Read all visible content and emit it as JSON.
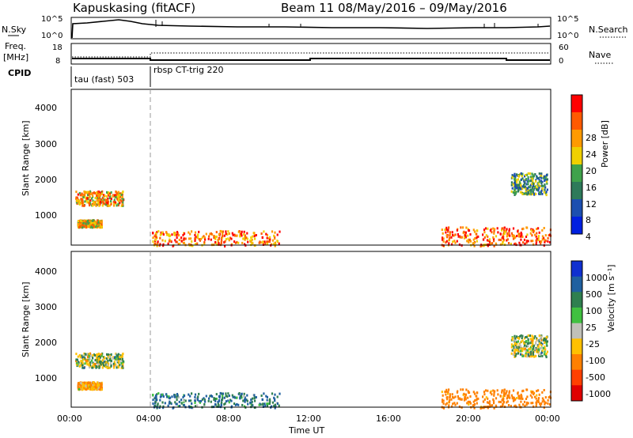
{
  "header": {
    "station": "Kapuskasing (fitACF)",
    "beam_range": "Beam 11 08/May/2016 – 09/May/2016"
  },
  "sky_panel": {
    "left_label": "N.Sky",
    "left_ticks": [
      "10^5",
      "10^0"
    ],
    "right_ticks": [
      "10^5",
      "10^0"
    ],
    "right_label": "N.Search"
  },
  "freq_panel": {
    "left_label_1": "Freq.",
    "left_label_2": "[MHz]",
    "left_ticks": [
      "18",
      "8"
    ],
    "right_ticks": [
      "60",
      "0"
    ],
    "right_label": "Nave"
  },
  "cpid": {
    "label": "CPID",
    "segments": [
      "tau (fast) 503",
      "rbsp CT-trig 220"
    ]
  },
  "power_panel": {
    "ylabel": "Slant Range [km]",
    "yticks": [
      "4000",
      "3000",
      "2000",
      "1000"
    ],
    "colorbar_label": "Power [dB]",
    "colorbar_ticks": [
      "28",
      "24",
      "20",
      "16",
      "12",
      "8",
      "4"
    ],
    "colors": [
      "#0020e0",
      "#1c4fb0",
      "#2e7a5a",
      "#3fa24b",
      "#f0d000",
      "#ff9a00",
      "#ff5a00",
      "#ff0000"
    ]
  },
  "velocity_panel": {
    "ylabel": "Slant Range [km]",
    "yticks": [
      "4000",
      "3000",
      "2000",
      "1000"
    ],
    "colorbar_label": "Velocity [m s⁻¹]",
    "colorbar_ticks": [
      "1000",
      "500",
      "100",
      "25",
      "-25",
      "-100",
      "-500",
      "-1000"
    ],
    "colors": [
      "#1030d0",
      "#2060a0",
      "#2f7f4f",
      "#40c040",
      "#c0c0b8",
      "#ffc000",
      "#ff8000",
      "#ff4000",
      "#e00000"
    ]
  },
  "xaxis": {
    "ticks": [
      "00:00",
      "04:00",
      "08:00",
      "12:00",
      "16:00",
      "20:00",
      "00:00"
    ],
    "label": "Time UT"
  },
  "chart_data": {
    "type": "heatmap",
    "title": "Kapuskasing (fitACF)",
    "subtitle": "Beam 11 08/May/2016 – 09/May/2016",
    "xlabel": "Time UT",
    "x_range_hours": [
      0,
      24
    ],
    "y_range_km": [
      180,
      4500
    ],
    "cpid_segments": [
      {
        "label": "tau (fast) 503",
        "start_hour": 0,
        "end_hour": 4
      },
      {
        "label": "rbsp CT-trig 220",
        "start_hour": 4,
        "end_hour": 24
      }
    ],
    "panels": [
      {
        "name": "Power [dB]",
        "scale": [
          0,
          32
        ]
      },
      {
        "name": "Velocity [m s⁻¹]",
        "scale": [
          -1000,
          1000
        ]
      }
    ],
    "echo_regions": [
      {
        "hours": [
          0.2,
          2.6
        ],
        "range_km": [
          1300,
          1700
        ],
        "power_db": 22,
        "velocity": 0
      },
      {
        "hours": [
          0.3,
          1.5
        ],
        "range_km": [
          700,
          900
        ],
        "power_db": 20,
        "velocity": -100
      },
      {
        "hours": [
          4.0,
          10.5
        ],
        "range_km": [
          180,
          600
        ],
        "power_db": 24,
        "velocity": 100
      },
      {
        "hours": [
          18.5,
          24
        ],
        "range_km": [
          180,
          700
        ],
        "power_db": 26,
        "velocity": -200
      },
      {
        "hours": [
          22.0,
          23.8
        ],
        "range_km": [
          1600,
          2200
        ],
        "power_db": 12,
        "velocity": 0
      }
    ]
  }
}
